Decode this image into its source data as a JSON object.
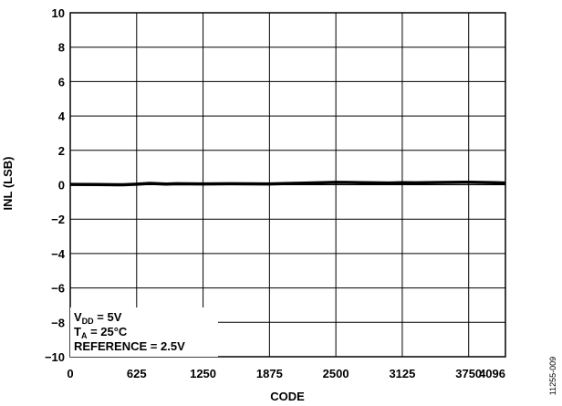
{
  "chart_data": {
    "type": "line",
    "xlabel": "CODE",
    "ylabel": "INL (LSB)",
    "xlim": [
      0,
      4096
    ],
    "ylim": [
      -10,
      10
    ],
    "x_ticks": [
      0,
      625,
      1250,
      1875,
      2500,
      3125,
      3750,
      4096
    ],
    "y_ticks": [
      10,
      8,
      6,
      4,
      2,
      0,
      -2,
      -4,
      -6,
      -8,
      -10
    ],
    "y_tick_labels": [
      "10",
      "8",
      "6",
      "4",
      "2",
      "0",
      "−2",
      "−4",
      "−6",
      "−8",
      "−10"
    ],
    "grid": true,
    "series": [
      {
        "x": [
          0,
          250,
          500,
          625,
          750,
          900,
          1000,
          1250,
          1500,
          1875,
          2000,
          2250,
          2500,
          2750,
          3000,
          3125,
          3250,
          3500,
          3750,
          4000,
          4096
        ],
        "values": [
          0.02,
          0.01,
          0.0,
          0.03,
          0.08,
          0.04,
          0.06,
          0.05,
          0.06,
          0.05,
          0.07,
          0.1,
          0.14,
          0.12,
          0.1,
          0.12,
          0.11,
          0.13,
          0.15,
          0.12,
          0.1
        ]
      }
    ],
    "conditions": {
      "vdd_main": "V",
      "vdd_sub": "DD",
      "vdd_value": " = 5V",
      "ta_main": "T",
      "ta_sub": "A",
      "ta_value": " = 25°C",
      "reference": "REFERENCE = 2.5V"
    },
    "figure_code": "11255-009"
  }
}
